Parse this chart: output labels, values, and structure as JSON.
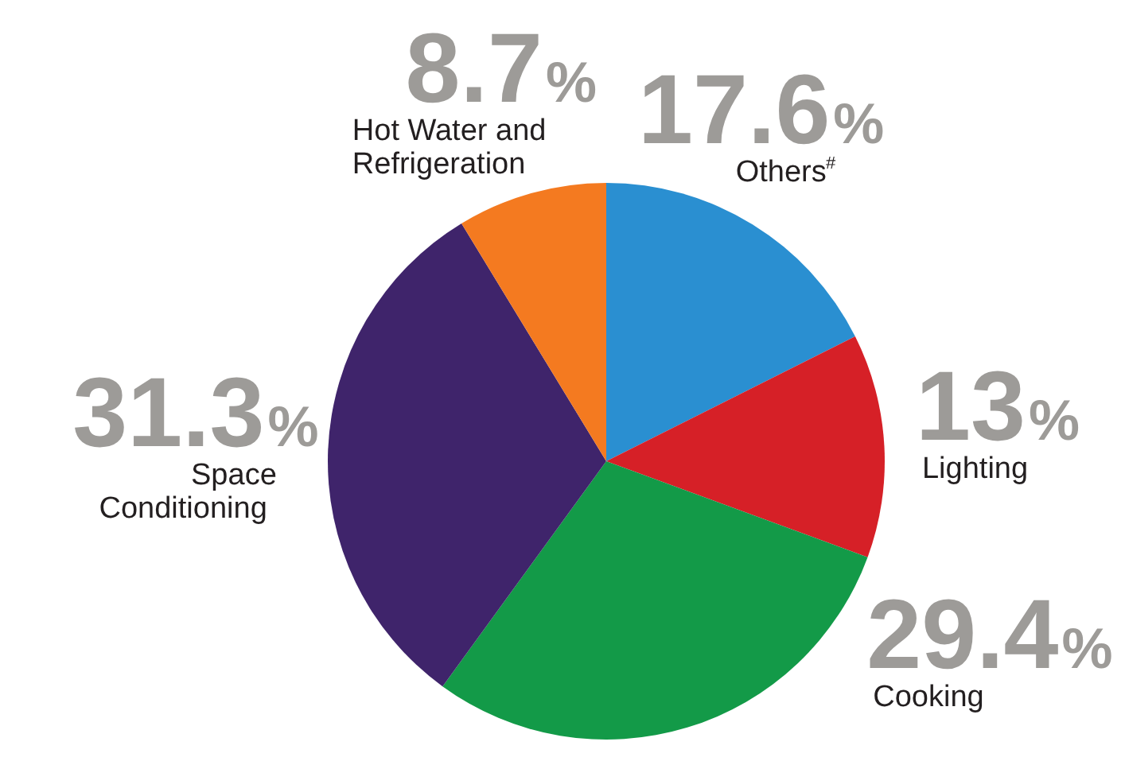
{
  "chart_data": {
    "type": "pie",
    "categories": [
      "Others$^{#}$",
      "Lighting",
      "Cooking",
      "Space\nConditioning",
      "Hot Water and\nRefrigeration"
    ],
    "values": [
      17.6,
      13,
      29.4,
      31.3,
      8.7
    ],
    "colors": [
      "#2a8fd1",
      "#d62027",
      "#139a48",
      "#3f246b",
      "#f47a20"
    ],
    "value_labels": [
      "17.6%",
      "13%",
      "29.4%",
      "31.3%",
      "8.7%"
    ]
  }
}
